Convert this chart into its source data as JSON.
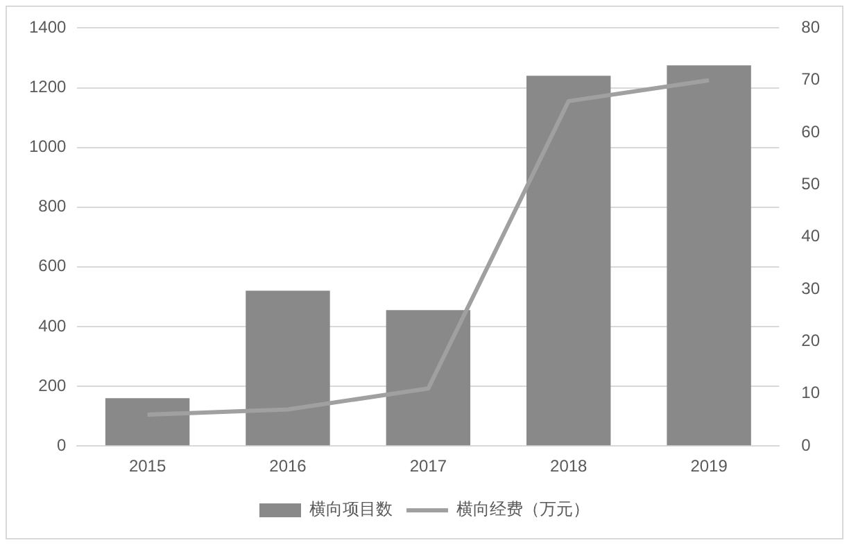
{
  "chart_data": {
    "type": "bar",
    "categories": [
      "2015",
      "2016",
      "2017",
      "2018",
      "2019"
    ],
    "series": [
      {
        "name": "横向项目数",
        "color": "#898989",
        "values": [
          160,
          520,
          455,
          1240,
          1275
        ]
      },
      {
        "name": "横向经费（万元）",
        "type": "line",
        "axis": "y2",
        "color": "#a0a0a0",
        "values": [
          6,
          7,
          11,
          66,
          70
        ]
      }
    ],
    "ylim": [
      0,
      1400
    ],
    "yticks": [
      0,
      200,
      400,
      600,
      800,
      1000,
      1200,
      1400
    ],
    "y2lim": [
      0,
      80
    ],
    "y2ticks": [
      0,
      10,
      20,
      30,
      40,
      50,
      60,
      70,
      80
    ],
    "grid": "y",
    "legend": "bottom",
    "marker": "none"
  }
}
